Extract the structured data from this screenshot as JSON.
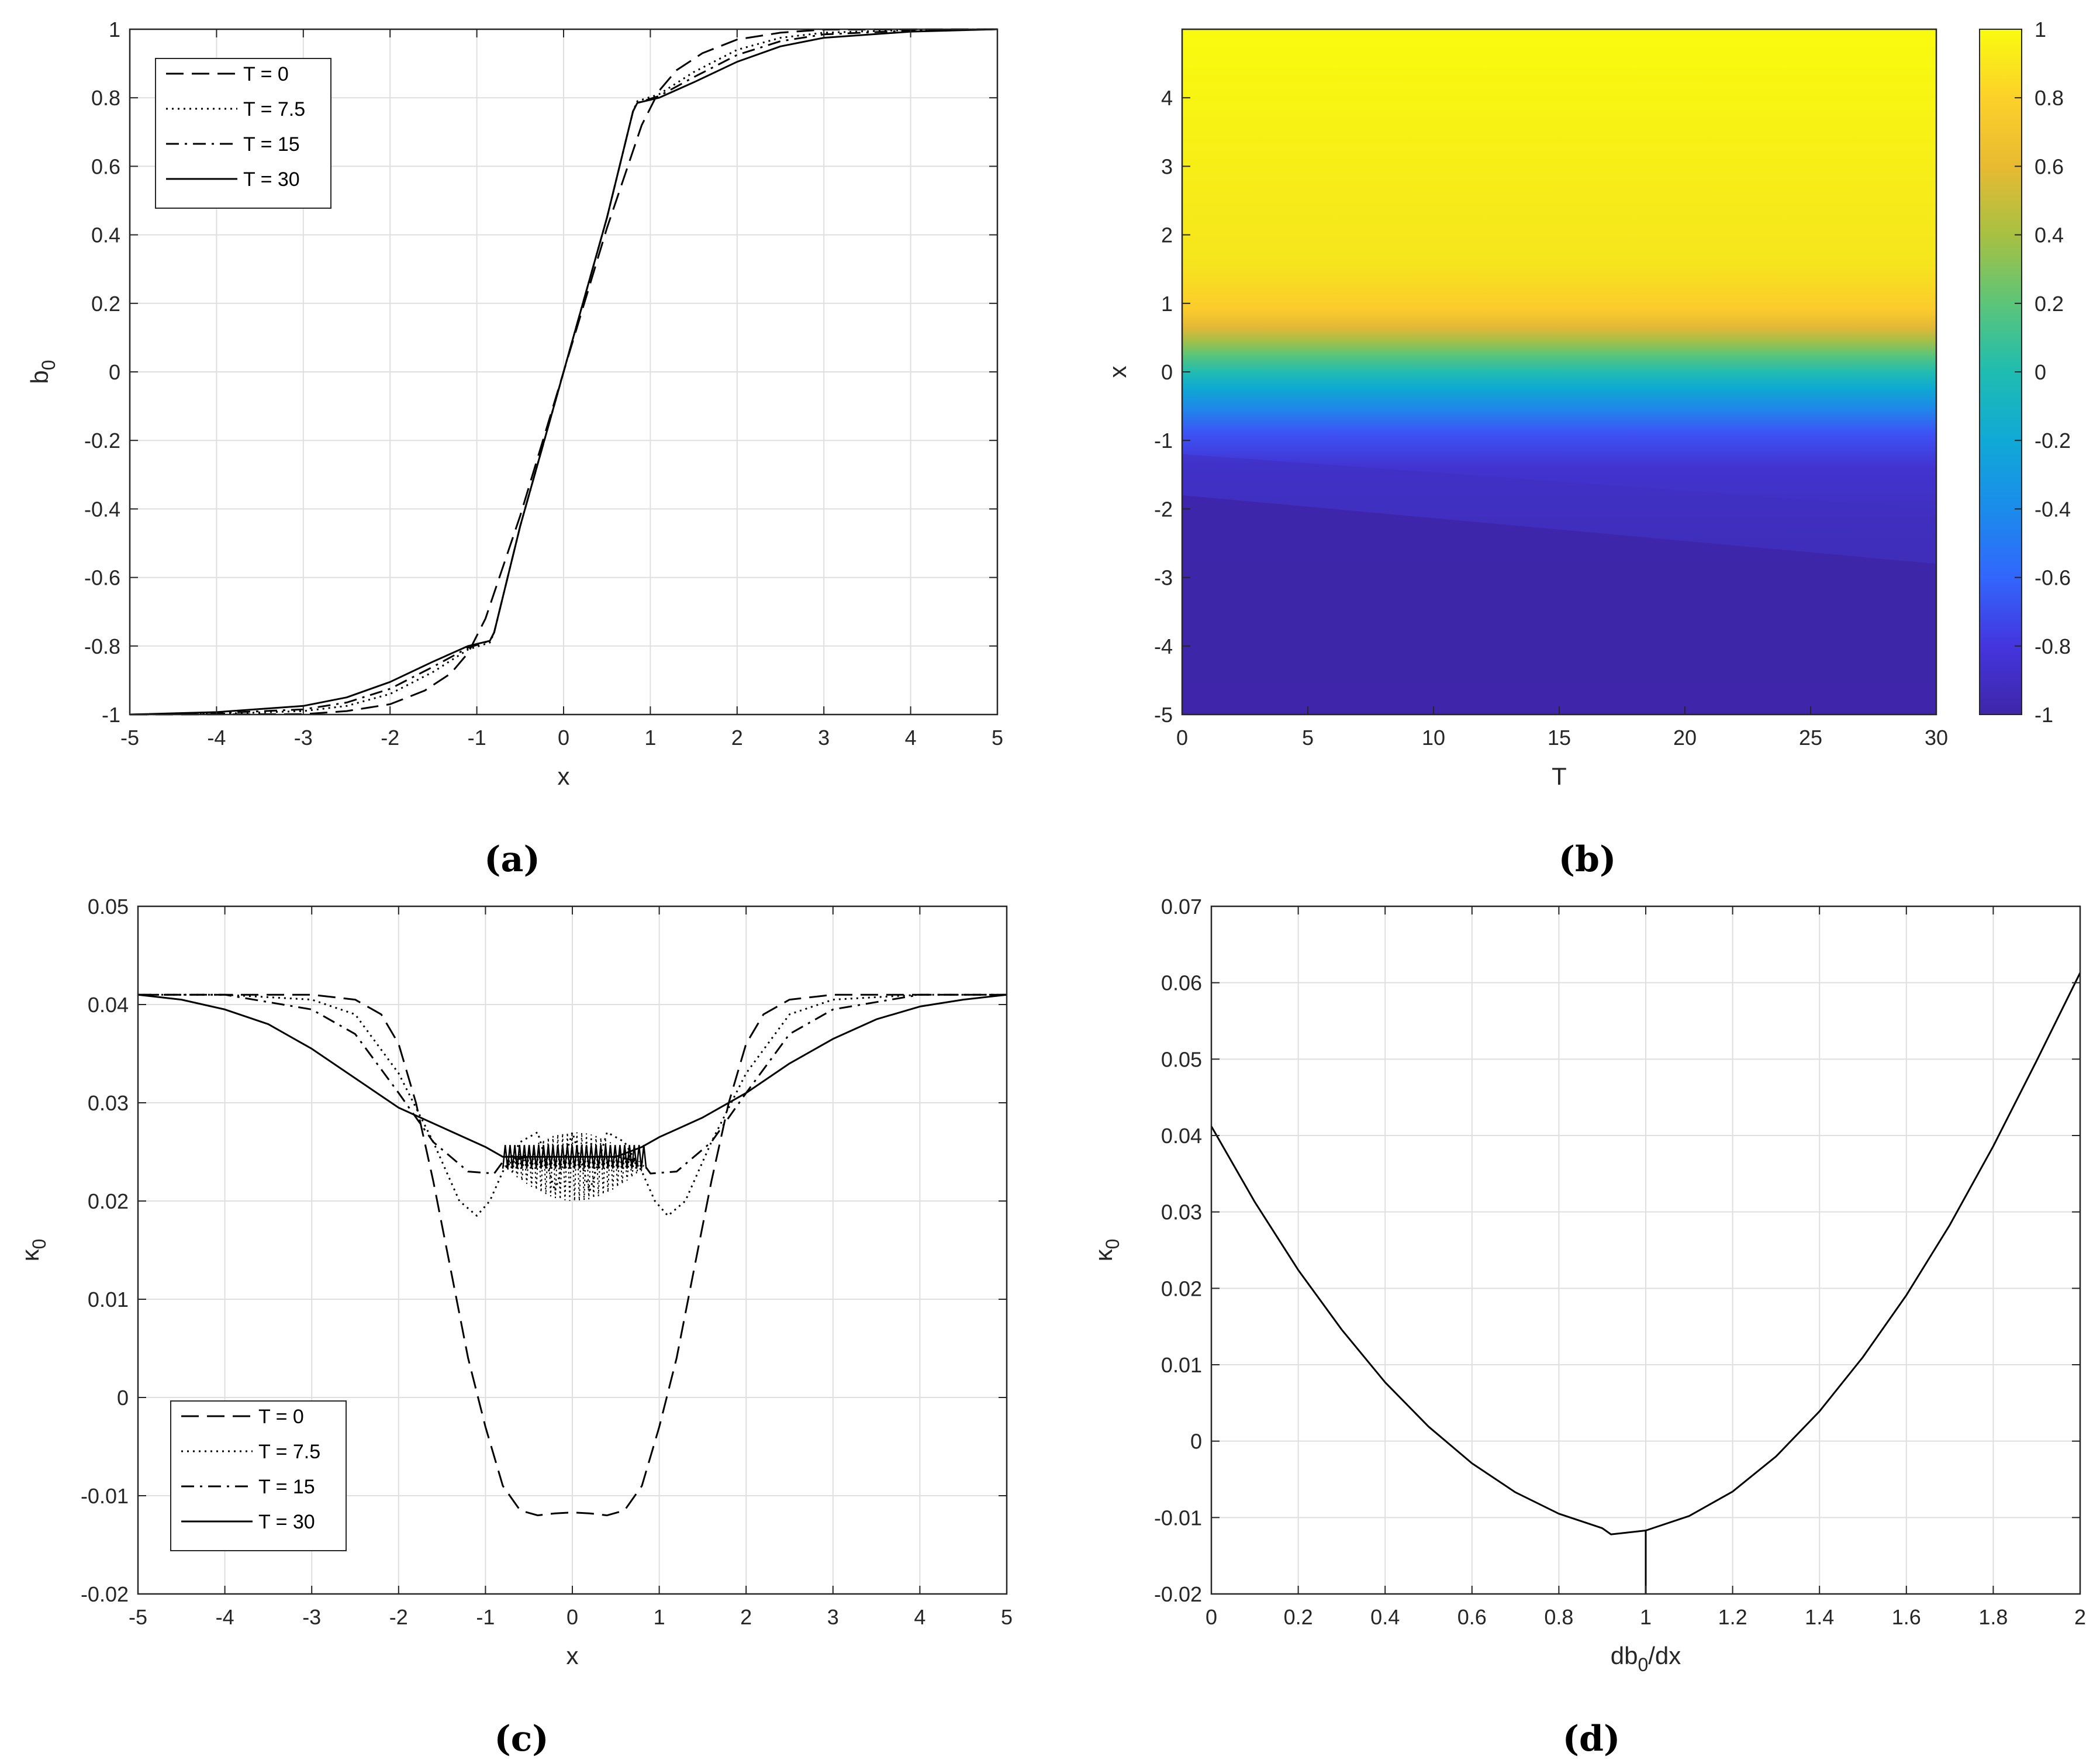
{
  "figure": {
    "panel_labels": [
      "(a)",
      "(b)",
      "(c)",
      "(d)"
    ]
  },
  "legend_entries": [
    "T = 0",
    "T = 7.5",
    "T = 15",
    "T = 30"
  ],
  "chart_data": [
    {
      "id": "a",
      "type": "line",
      "title": "",
      "xlabel": "x",
      "ylabel": "b",
      "ylabel_subscript": "0",
      "xlim": [
        -5,
        5
      ],
      "ylim": [
        -1,
        1
      ],
      "xticks": [
        -5,
        -4,
        -3,
        -2,
        -1,
        0,
        1,
        2,
        3,
        4,
        5
      ],
      "yticks": [
        -1,
        -0.8,
        -0.6,
        -0.4,
        -0.2,
        0,
        0.2,
        0.4,
        0.6,
        0.8,
        1
      ],
      "grid": true,
      "legend_position": "top-left",
      "series": [
        {
          "name": "T = 0",
          "style": "dashed",
          "x": [
            -5,
            -3,
            -2.5,
            -2.0,
            -1.6,
            -1.3,
            -1.1,
            -0.9,
            -0.5,
            0,
            0.5,
            0.9,
            1.1,
            1.3,
            1.6,
            2.0,
            2.5,
            3,
            5
          ],
          "y": [
            -1,
            -0.999,
            -0.99,
            -0.97,
            -0.93,
            -0.88,
            -0.82,
            -0.72,
            -0.42,
            0,
            0.42,
            0.72,
            0.82,
            0.88,
            0.93,
            0.97,
            0.99,
            0.999,
            1
          ]
        },
        {
          "name": "T = 7.5",
          "style": "dotted",
          "x": [
            -5,
            -4,
            -3,
            -2.5,
            -2,
            -1.5,
            -1.1,
            -0.85,
            -0.8,
            -0.5,
            0,
            0.5,
            0.8,
            0.85,
            1.1,
            1.5,
            2,
            2.5,
            3,
            4,
            5
          ],
          "y": [
            -1,
            -0.998,
            -0.99,
            -0.975,
            -0.94,
            -0.875,
            -0.81,
            -0.79,
            -0.76,
            -0.45,
            0,
            0.45,
            0.76,
            0.79,
            0.81,
            0.875,
            0.94,
            0.975,
            0.99,
            0.998,
            1
          ]
        },
        {
          "name": "T = 15",
          "style": "dashdot",
          "x": [
            -5,
            -4,
            -3,
            -2.5,
            -2,
            -1.5,
            -1.1,
            -0.85,
            -0.8,
            -0.5,
            0,
            0.5,
            0.8,
            0.85,
            1.1,
            1.5,
            2,
            2.5,
            3,
            4,
            5
          ],
          "y": [
            -1,
            -0.996,
            -0.985,
            -0.965,
            -0.925,
            -0.86,
            -0.805,
            -0.785,
            -0.76,
            -0.45,
            0,
            0.45,
            0.76,
            0.785,
            0.805,
            0.86,
            0.925,
            0.965,
            0.985,
            0.996,
            1
          ]
        },
        {
          "name": "T = 30",
          "style": "solid",
          "x": [
            -5,
            -4,
            -3,
            -2.5,
            -2,
            -1.5,
            -1.1,
            -0.85,
            -0.8,
            -0.5,
            0,
            0.5,
            0.8,
            0.85,
            1.1,
            1.5,
            2,
            2.5,
            3,
            4,
            5
          ],
          "y": [
            -1,
            -0.993,
            -0.975,
            -0.95,
            -0.905,
            -0.845,
            -0.8,
            -0.785,
            -0.76,
            -0.45,
            0,
            0.45,
            0.76,
            0.785,
            0.8,
            0.845,
            0.905,
            0.95,
            0.975,
            0.993,
            1
          ]
        }
      ]
    },
    {
      "id": "b",
      "type": "heatmap",
      "title": "",
      "xlabel": "T",
      "ylabel": "x",
      "xlim": [
        0,
        30
      ],
      "ylim": [
        -5,
        5
      ],
      "xticks": [
        0,
        5,
        10,
        15,
        20,
        25,
        30
      ],
      "yticks": [
        -5,
        -4,
        -3,
        -2,
        -1,
        0,
        1,
        2,
        3,
        4
      ],
      "colorbar": {
        "range": [
          -1,
          1
        ],
        "ticks": [
          -1,
          -0.8,
          -0.6,
          -0.4,
          -0.2,
          0,
          0.2,
          0.4,
          0.6,
          0.8,
          1
        ],
        "colormap": "parula",
        "colors": [
          "#3e26a8",
          "#4435de",
          "#3266fc",
          "#1b8ceb",
          "#10a9d6",
          "#1fbcb1",
          "#5cc578",
          "#a8c042",
          "#e8ba31",
          "#fcd12a",
          "#f9fb0e"
        ]
      },
      "description_values": {
        "x_transition_center": 0.0,
        "T_range": [
          0,
          30
        ]
      }
    },
    {
      "id": "c",
      "type": "line",
      "title": "",
      "xlabel": "x",
      "ylabel": "κ",
      "ylabel_subscript": "0",
      "xlim": [
        -5,
        5
      ],
      "ylim": [
        -0.02,
        0.05
      ],
      "xticks": [
        -5,
        -4,
        -3,
        -2,
        -1,
        0,
        1,
        2,
        3,
        4,
        5
      ],
      "yticks": [
        -0.02,
        -0.01,
        0,
        0.01,
        0.02,
        0.03,
        0.04,
        0.05
      ],
      "grid": true,
      "legend_position": "bottom-left",
      "series": [
        {
          "name": "T = 0",
          "style": "dashed",
          "x": [
            -5,
            -4,
            -3,
            -2.5,
            -2.2,
            -2,
            -1.8,
            -1.6,
            -1.4,
            -1.2,
            -1,
            -0.8,
            -0.6,
            -0.4,
            -0.2,
            0,
            0.2,
            0.4,
            0.6,
            0.8,
            1,
            1.2,
            1.4,
            1.6,
            1.8,
            2,
            2.2,
            2.5,
            3,
            4,
            5
          ],
          "y": [
            0.041,
            0.041,
            0.041,
            0.0405,
            0.039,
            0.036,
            0.03,
            0.022,
            0.013,
            0.004,
            -0.003,
            -0.009,
            -0.0115,
            -0.012,
            -0.0118,
            -0.0117,
            -0.0118,
            -0.012,
            -0.0115,
            -0.009,
            -0.003,
            0.004,
            0.013,
            0.022,
            0.03,
            0.036,
            0.039,
            0.0405,
            0.041,
            0.041,
            0.041
          ]
        },
        {
          "name": "T = 7.5",
          "style": "dotted",
          "x": [
            -5,
            -4,
            -3,
            -2.5,
            -2,
            -1.6,
            -1.3,
            -1.1,
            -0.95,
            -0.8,
            -0.6,
            -0.4,
            -0.2,
            0,
            0.2,
            0.4,
            0.6,
            0.8,
            0.95,
            1.1,
            1.3,
            1.6,
            2,
            2.5,
            3,
            4,
            5
          ],
          "y": [
            0.041,
            0.041,
            0.0405,
            0.039,
            0.033,
            0.026,
            0.02,
            0.0185,
            0.02,
            0.023,
            0.026,
            0.027,
            0.021,
            0.027,
            0.021,
            0.027,
            0.026,
            0.023,
            0.02,
            0.0185,
            0.02,
            0.026,
            0.033,
            0.039,
            0.0405,
            0.041,
            0.041
          ]
        },
        {
          "name": "T = 15",
          "style": "dashdot",
          "x": [
            -5,
            -4,
            -3,
            -2.5,
            -2,
            -1.6,
            -1.2,
            -0.9,
            -0.8,
            -0.5,
            0,
            0.5,
            0.8,
            0.9,
            1.2,
            1.6,
            2,
            2.5,
            3,
            4,
            5
          ],
          "y": [
            0.041,
            0.041,
            0.0395,
            0.037,
            0.031,
            0.026,
            0.023,
            0.0228,
            0.024,
            0.0245,
            0.0245,
            0.0245,
            0.024,
            0.0228,
            0.023,
            0.026,
            0.031,
            0.037,
            0.0395,
            0.041,
            0.041
          ]
        },
        {
          "name": "T = 30",
          "style": "solid",
          "x": [
            -5,
            -4.5,
            -4,
            -3.5,
            -3,
            -2.5,
            -2,
            -1.5,
            -1,
            -0.8,
            -0.5,
            0,
            0.5,
            0.8,
            1,
            1.5,
            2,
            2.5,
            3,
            3.5,
            4,
            4.5,
            5
          ],
          "y": [
            0.041,
            0.0405,
            0.0395,
            0.038,
            0.0355,
            0.0325,
            0.0295,
            0.0275,
            0.0255,
            0.0245,
            0.0245,
            0.0245,
            0.0245,
            0.0255,
            0.0265,
            0.0285,
            0.031,
            0.034,
            0.0365,
            0.0385,
            0.0398,
            0.0405,
            0.041
          ]
        }
      ]
    },
    {
      "id": "d",
      "type": "line",
      "title": "",
      "xlabel": "db",
      "xlabel_subscript": "0",
      "xlabel_suffix": "/dx",
      "ylabel": "κ",
      "ylabel_subscript": "0",
      "xlim": [
        0,
        2
      ],
      "ylim": [
        -0.02,
        0.07
      ],
      "xticks": [
        0,
        0.2,
        0.4,
        0.6,
        0.8,
        1,
        1.2,
        1.4,
        1.6,
        1.8,
        2
      ],
      "yticks": [
        -0.02,
        -0.01,
        0,
        0.01,
        0.02,
        0.03,
        0.04,
        0.05,
        0.06,
        0.07
      ],
      "grid": true,
      "series": [
        {
          "name": "κ0",
          "style": "solid",
          "x": [
            0,
            0.1,
            0.2,
            0.3,
            0.4,
            0.5,
            0.6,
            0.7,
            0.8,
            0.9,
            0.92,
            1.0,
            1.1,
            1.2,
            1.3,
            1.4,
            1.5,
            1.6,
            1.7,
            1.8,
            1.9,
            2.0
          ],
          "y": [
            0.0412,
            0.0313,
            0.0224,
            0.0146,
            0.0077,
            0.0019,
            -0.0029,
            -0.0067,
            -0.0095,
            -0.0114,
            -0.0122,
            -0.0117,
            -0.0098,
            -0.0066,
            -0.002,
            0.0039,
            0.011,
            0.0191,
            0.0283,
            0.0386,
            0.0498,
            0.0613
          ]
        },
        {
          "name": "vertical-marker",
          "style": "solid",
          "x": [
            1.0,
            1.0
          ],
          "y": [
            -0.02,
            -0.0117
          ]
        }
      ]
    }
  ]
}
